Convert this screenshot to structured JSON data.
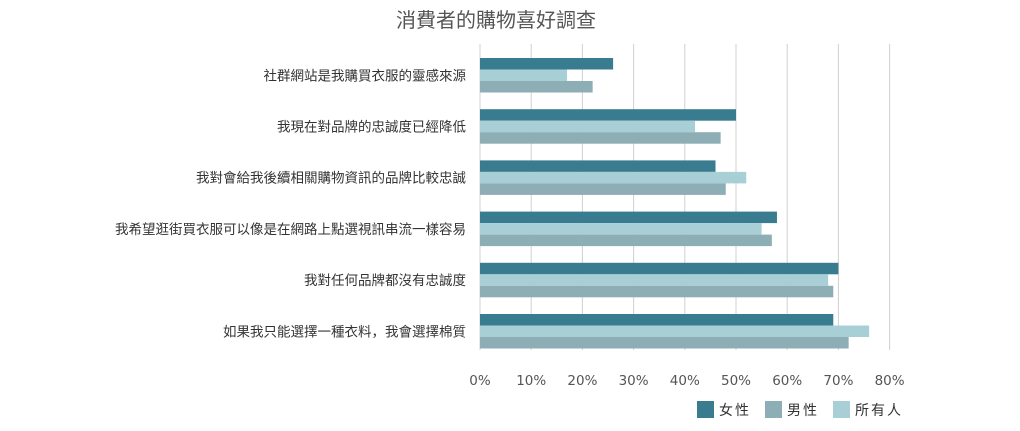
{
  "chart_data": {
    "type": "bar",
    "orientation": "horizontal",
    "title": "消費者的購物喜好調查",
    "categories": [
      "社群網站是我購買衣服的靈感來源",
      "我現在對品牌的忠誠度已經降低",
      "我對會給我後續相關購物資訊的品牌比較忠誠",
      "我希望逛街買衣服可以像是在網路上點選視訊串流一樣容易",
      "我對任何品牌都沒有忠誠度",
      "如果我只能選擇一種衣料，我會選擇棉質"
    ],
    "series": [
      {
        "name": "女性",
        "color": "#3a7c8f",
        "values": [
          26,
          50,
          46,
          58,
          70,
          69
        ]
      },
      {
        "name": "所有人",
        "color": "#a9cfd6",
        "values": [
          17,
          42,
          52,
          55,
          68,
          76
        ]
      },
      {
        "name": "男性",
        "color": "#8eaeb5",
        "values": [
          22,
          47,
          48,
          57,
          69,
          72
        ]
      }
    ],
    "xlim": [
      0,
      80
    ],
    "xticks": [
      "0%",
      "10%",
      "20%",
      "30%",
      "40%",
      "50%",
      "60%",
      "70%",
      "80%"
    ],
    "grid": true,
    "legend": {
      "position": "bottom-right",
      "items": [
        {
          "label": "女性",
          "color": "#3a7c8f"
        },
        {
          "label": "男性",
          "color": "#8eaeb5"
        },
        {
          "label": "所有人",
          "color": "#a9cfd6"
        }
      ]
    }
  }
}
